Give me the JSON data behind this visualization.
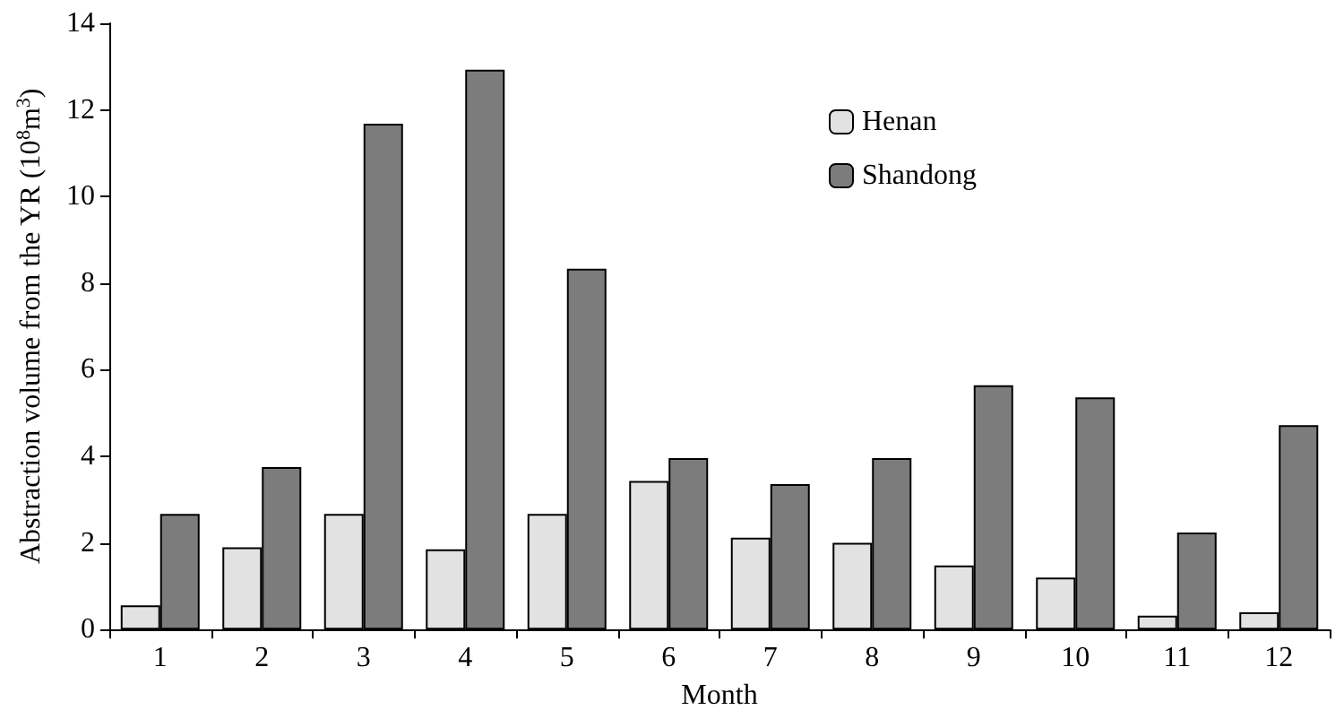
{
  "chart_data": {
    "type": "bar",
    "xlabel": "Month",
    "ylabel": "Abstraction volume from the YR (10$^{8}$m$^{3}$)",
    "categories": [
      "1",
      "2",
      "3",
      "4",
      "5",
      "6",
      "7",
      "8",
      "9",
      "10",
      "11",
      "12"
    ],
    "series": [
      {
        "name": "Henan",
        "color": "#e2e2e2",
        "values": [
          0.56,
          1.9,
          2.67,
          1.85,
          2.67,
          3.43,
          2.12,
          2.0,
          1.48,
          1.2,
          0.32,
          0.4
        ]
      },
      {
        "name": "Shandong",
        "color": "#7c7c7c",
        "values": [
          2.67,
          3.75,
          11.68,
          12.93,
          8.33,
          3.96,
          3.36,
          3.96,
          5.64,
          5.36,
          2.24,
          4.72
        ]
      }
    ],
    "ylim": [
      0,
      14
    ],
    "yticks": [
      0,
      2,
      4,
      6,
      8,
      10,
      12,
      14
    ],
    "grid": false,
    "legend": "top right"
  }
}
